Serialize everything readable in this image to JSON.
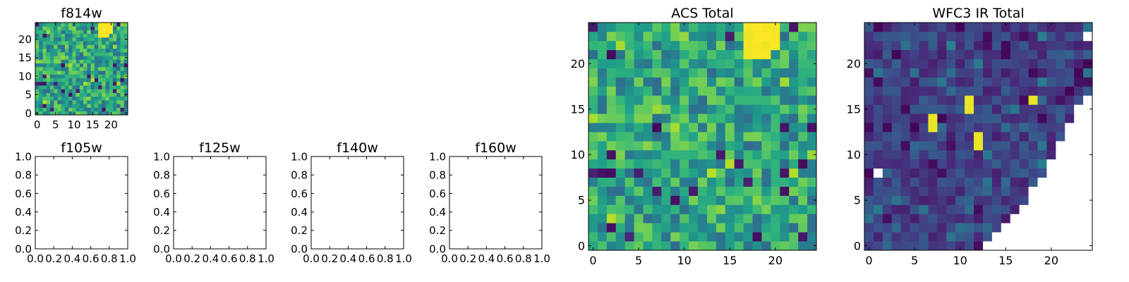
{
  "chart_data": [
    {
      "id": "f814w",
      "type": "heatmap",
      "title": "f814w",
      "grid_size": 25,
      "xlim": [
        -0.5,
        24.5
      ],
      "ylim": [
        -0.5,
        24.5
      ],
      "xticks": [
        0,
        5,
        10,
        15,
        20
      ],
      "yticks": [
        0,
        5,
        10,
        15,
        20
      ],
      "colormap": "viridis",
      "value_range": [
        0,
        1
      ],
      "values_note": "pixel noise field with a bright cluster near x=17-20, y=22-24"
    },
    {
      "id": "f105w",
      "type": "empty",
      "title": "f105w",
      "xlim": [
        0,
        1
      ],
      "ylim": [
        0,
        1
      ],
      "xticks": [
        "0.0",
        "0.2",
        "0.4",
        "0.6",
        "0.8",
        "1.0"
      ],
      "yticks": [
        "0.0",
        "0.2",
        "0.4",
        "0.6",
        "0.8",
        "1.0"
      ]
    },
    {
      "id": "f125w",
      "type": "empty",
      "title": "f125w",
      "xlim": [
        0,
        1
      ],
      "ylim": [
        0,
        1
      ],
      "xticks": [
        "0.0",
        "0.2",
        "0.4",
        "0.6",
        "0.8",
        "1.0"
      ],
      "yticks": [
        "0.0",
        "0.2",
        "0.4",
        "0.6",
        "0.8",
        "1.0"
      ]
    },
    {
      "id": "f140w",
      "type": "empty",
      "title": "f140w",
      "xlim": [
        0,
        1
      ],
      "ylim": [
        0,
        1
      ],
      "xticks": [
        "0.0",
        "0.2",
        "0.4",
        "0.6",
        "0.8",
        "1.0"
      ],
      "yticks": [
        "0.0",
        "0.2",
        "0.4",
        "0.6",
        "0.8",
        "1.0"
      ]
    },
    {
      "id": "f160w",
      "type": "empty",
      "title": "f160w",
      "xlim": [
        0,
        1
      ],
      "ylim": [
        0,
        1
      ],
      "xticks": [
        "0.0",
        "0.2",
        "0.4",
        "0.6",
        "0.8",
        "1.0"
      ],
      "yticks": [
        "0.0",
        "0.2",
        "0.4",
        "0.6",
        "0.8",
        "1.0"
      ]
    },
    {
      "id": "acs-total",
      "type": "heatmap",
      "title": "ACS Total",
      "grid_size": 25,
      "xlim": [
        -0.5,
        24.5
      ],
      "ylim": [
        -0.5,
        24.5
      ],
      "xticks": [
        0,
        5,
        10,
        15,
        20
      ],
      "yticks": [
        0,
        5,
        10,
        15,
        20
      ],
      "colormap": "viridis",
      "value_range": [
        0,
        1
      ],
      "values_note": "same field as f814w; bright cluster near x=17-20, y=21-24"
    },
    {
      "id": "wfc3-ir-total",
      "type": "heatmap",
      "title": "WFC3 IR Total",
      "grid_size": 25,
      "xlim": [
        -0.5,
        24.5
      ],
      "ylim": [
        -0.5,
        24.5
      ],
      "xticks": [
        0,
        5,
        10,
        15,
        20
      ],
      "yticks": [
        0,
        5,
        10,
        15,
        20
      ],
      "colormap": "viridis",
      "value_range": [
        0,
        1
      ],
      "bright_pixels": [
        [
          7,
          14
        ],
        [
          7,
          13
        ],
        [
          11,
          16
        ],
        [
          11,
          15
        ],
        [
          18,
          16
        ],
        [
          12,
          11
        ],
        [
          12,
          12
        ]
      ],
      "masked_pixels_note": "lower-right wedge and single pixel at x=1, y=8 are blank (NaN)"
    }
  ]
}
